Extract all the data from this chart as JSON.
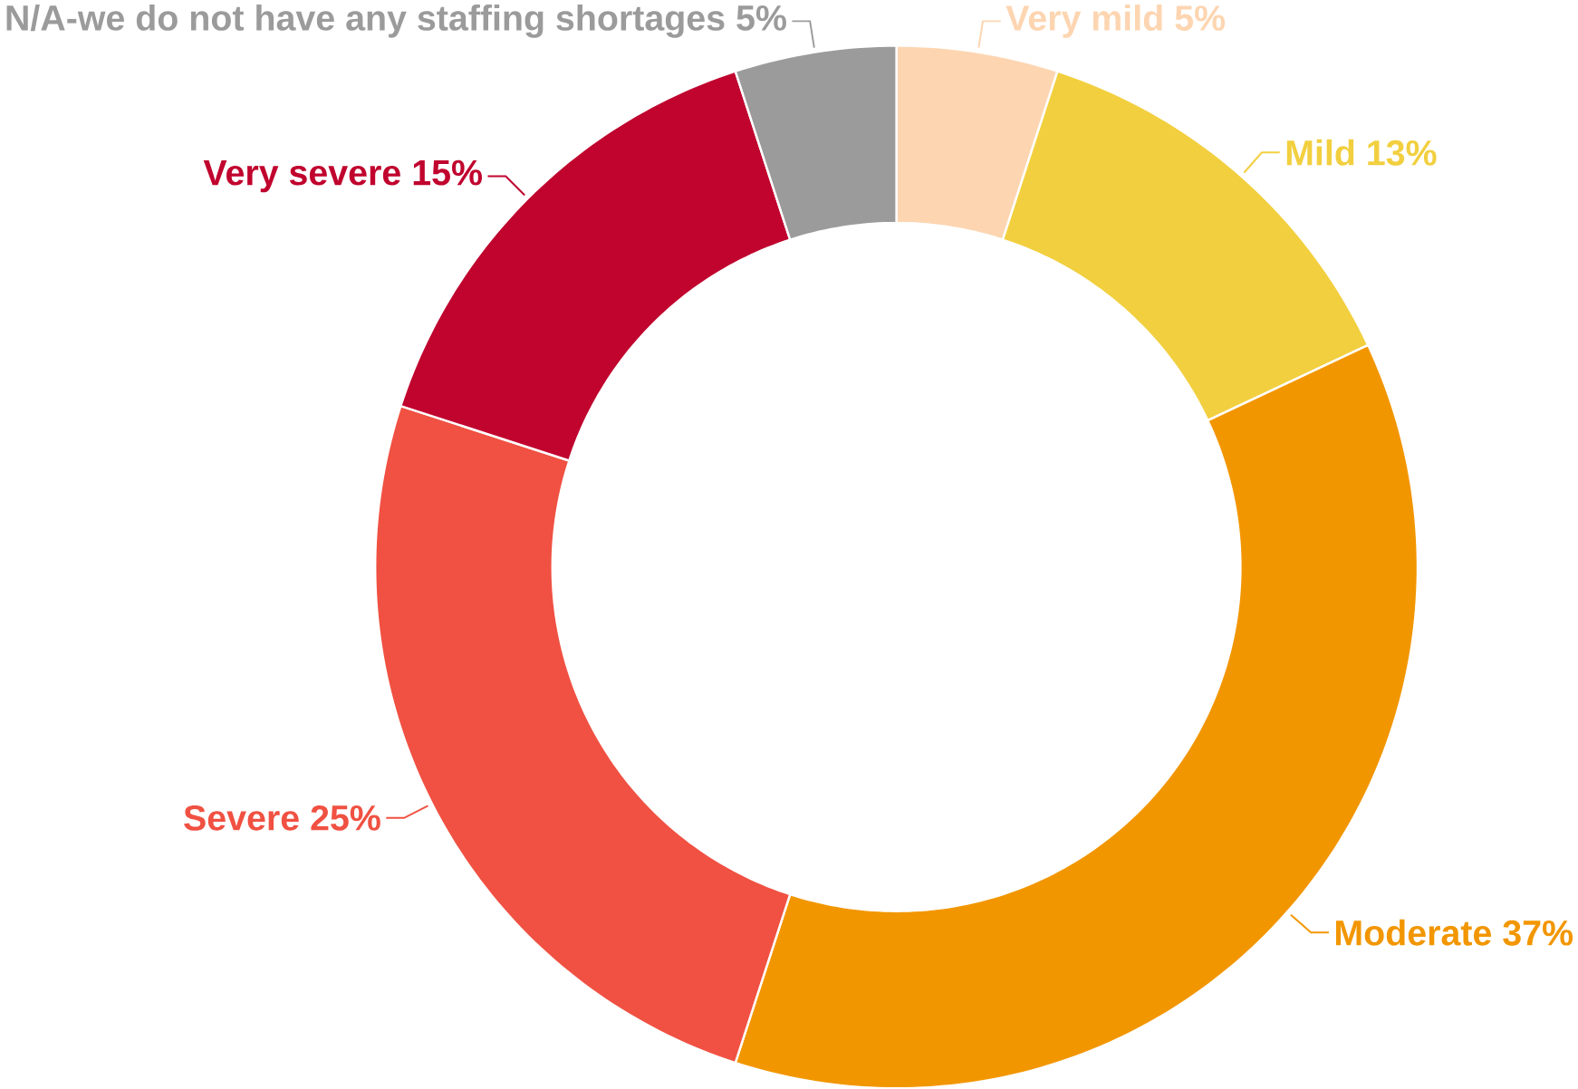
{
  "chart_data": {
    "type": "donut",
    "categories": [
      "Very mild",
      "Mild",
      "Moderate",
      "Severe",
      "Very severe",
      "N/A-we do not have any staffing shortages"
    ],
    "values": [
      5,
      13,
      37,
      25,
      15,
      5
    ],
    "value_labels": [
      "5%",
      "13%",
      "37%",
      "25%",
      "15%",
      "5%"
    ],
    "colors": [
      "#fdd5b1",
      "#f2cf3f",
      "#f29600",
      "#f05142",
      "#c0042e",
      "#9b9b9b"
    ]
  }
}
